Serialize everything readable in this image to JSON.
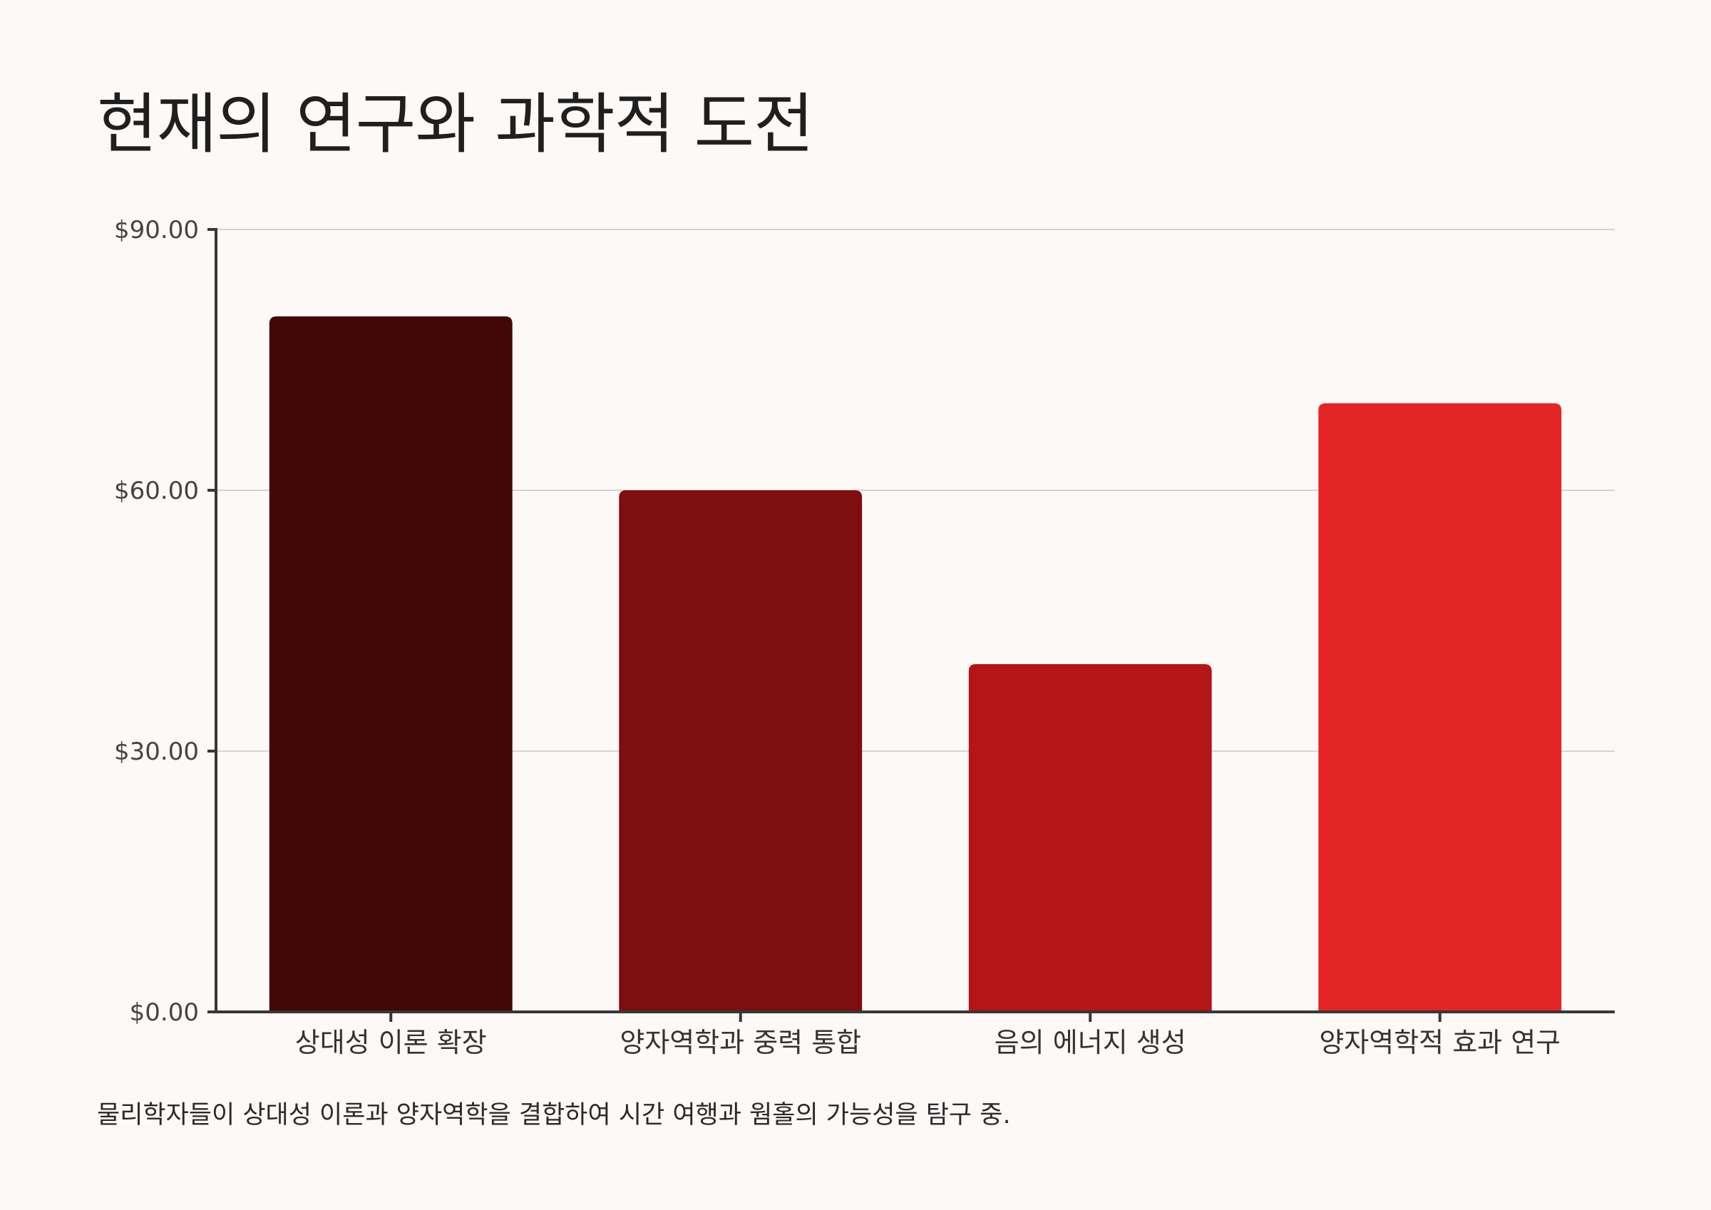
{
  "chart_data": {
    "type": "bar",
    "title": "현재의 연구와 과학적 도전",
    "categories": [
      "상대성 이론 확장",
      "양자역학과 중력 통합",
      "음의 에너지 생성",
      "양자역학적 효과 연구"
    ],
    "values": [
      80,
      60,
      40,
      70
    ],
    "bar_colors": [
      "#440709",
      "#7f0e10",
      "#b51516",
      "#e42525"
    ],
    "ylim": [
      0,
      90
    ],
    "yticks": [
      0,
      30,
      60,
      90
    ],
    "ytick_labels": [
      "$0.00",
      "$30.00",
      "$60.00",
      "$90.00"
    ],
    "xlabel": "",
    "ylabel": "",
    "grid": true,
    "caption": "물리학자들이 상대성 이론과 양자역학을 결합하여 시간 여행과 웜홀의 가능성을 탐구 중."
  },
  "colors": {
    "background": "#fdf9f7",
    "axis": "#3a3636",
    "gridline": "#d6d3d1"
  }
}
